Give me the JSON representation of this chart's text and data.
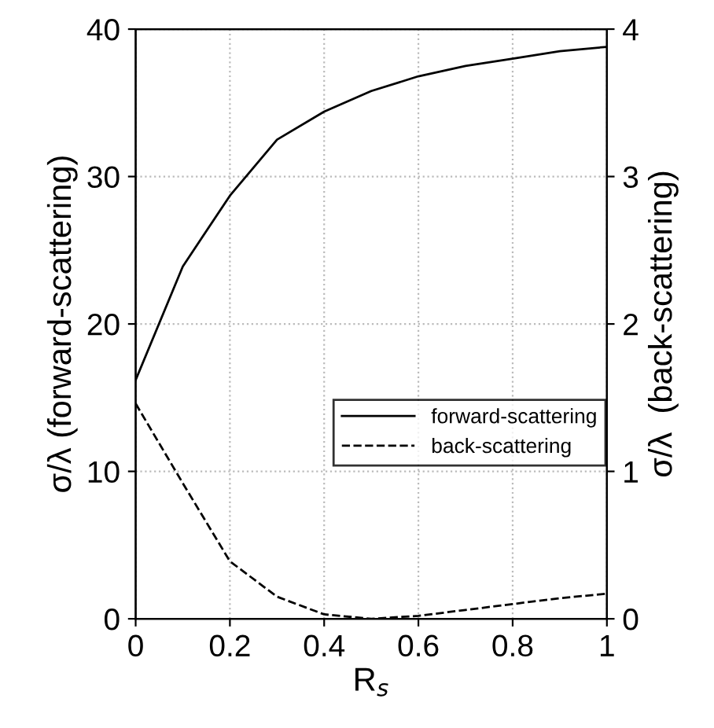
{
  "chart_data": {
    "type": "line",
    "xlabel": "R$_{s}$",
    "ylabel": "σ/λ (forward-scattering)",
    "y2label": "σ/λ  (back-scattering)",
    "x": [
      0,
      0.1,
      0.2,
      0.3,
      0.4,
      0.5,
      0.6,
      0.7,
      0.8,
      0.9,
      1.0
    ],
    "series": [
      {
        "name": "forward-scattering",
        "color": "#000000",
        "line_style": "solid",
        "values": [
          16.2,
          23.9,
          28.7,
          32.5,
          34.4,
          35.8,
          36.8,
          37.5,
          38.0,
          38.5,
          38.8
        ]
      },
      {
        "name": "back-scattering",
        "color": "#000000",
        "line_style": "dashed",
        "axis": "y2",
        "values": [
          1.46,
          0.92,
          0.39,
          0.15,
          0.03,
          0.0,
          0.02,
          0.06,
          0.1,
          0.14,
          0.17
        ]
      }
    ],
    "xlim": [
      0,
      1
    ],
    "xticks": [
      0,
      0.2,
      0.4,
      0.6,
      0.8,
      1
    ],
    "ylim": [
      0,
      40
    ],
    "yticks": [
      0,
      10,
      20,
      30,
      40
    ],
    "y2lim": [
      0,
      4
    ],
    "y2ticks": [
      0,
      1,
      2,
      3,
      4
    ],
    "grid": true,
    "legend": "right"
  }
}
